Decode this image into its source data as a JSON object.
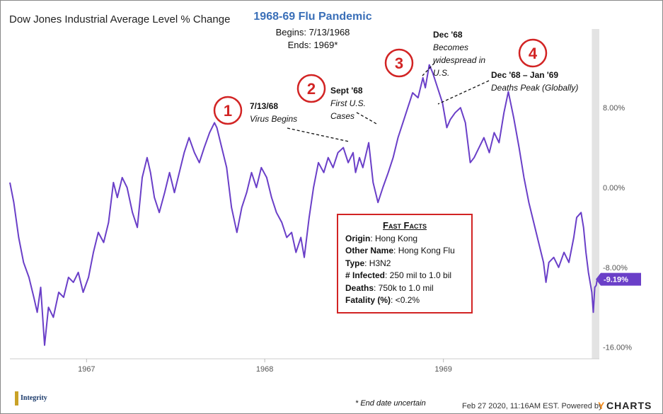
{
  "chart_data": {
    "type": "line",
    "title": "Dow Jones Industrial Average Level % Change",
    "ylim": [
      -17.5,
      15
    ],
    "y_ticks": [
      {
        "value": 8,
        "label": "8.00%"
      },
      {
        "value": 0,
        "label": "0.00%"
      },
      {
        "value": -8,
        "label": "-8.00%"
      },
      {
        "value": -16,
        "label": "-16.00%"
      }
    ],
    "x_range": [
      "1966-07-28",
      "1969-11-12"
    ],
    "x_ticks": [
      {
        "date": "1967-01-01",
        "label": "1967"
      },
      {
        "date": "1968-01-01",
        "label": "1968"
      },
      {
        "date": "1969-01-01",
        "label": "1969"
      }
    ],
    "series": [
      {
        "color": "#6a3fc8",
        "points": [
          [
            "1966-07-28",
            0.5
          ],
          [
            "1966-08-05",
            -1.5
          ],
          [
            "1966-08-15",
            -5.0
          ],
          [
            "1966-08-25",
            -7.5
          ],
          [
            "1966-09-05",
            -9.0
          ],
          [
            "1966-09-15",
            -11.0
          ],
          [
            "1966-09-22",
            -12.5
          ],
          [
            "1966-09-29",
            -10.0
          ],
          [
            "1966-10-07",
            -15.8
          ],
          [
            "1966-10-15",
            -12.0
          ],
          [
            "1966-10-25",
            -13.0
          ],
          [
            "1966-11-05",
            -10.5
          ],
          [
            "1966-11-15",
            -11.0
          ],
          [
            "1966-11-25",
            -9.0
          ],
          [
            "1966-12-05",
            -9.5
          ],
          [
            "1966-12-15",
            -8.5
          ],
          [
            "1966-12-25",
            -10.5
          ],
          [
            "1967-01-05",
            -9.0
          ],
          [
            "1967-01-15",
            -6.5
          ],
          [
            "1967-01-25",
            -4.5
          ],
          [
            "1967-02-05",
            -5.5
          ],
          [
            "1967-02-15",
            -3.5
          ],
          [
            "1967-02-25",
            0.5
          ],
          [
            "1967-03-05",
            -1.0
          ],
          [
            "1967-03-15",
            1.0
          ],
          [
            "1967-03-25",
            0.0
          ],
          [
            "1967-04-05",
            -2.5
          ],
          [
            "1967-04-15",
            -4.0
          ],
          [
            "1967-04-25",
            1.0
          ],
          [
            "1967-05-05",
            3.0
          ],
          [
            "1967-05-12",
            1.5
          ],
          [
            "1967-05-20",
            -1.0
          ],
          [
            "1967-05-30",
            -2.5
          ],
          [
            "1967-06-10",
            -0.5
          ],
          [
            "1967-06-20",
            1.5
          ],
          [
            "1967-06-30",
            -0.5
          ],
          [
            "1967-07-10",
            1.5
          ],
          [
            "1967-07-20",
            3.5
          ],
          [
            "1967-07-30",
            5.0
          ],
          [
            "1967-08-10",
            3.5
          ],
          [
            "1967-08-20",
            2.5
          ],
          [
            "1967-08-30",
            4.0
          ],
          [
            "1967-09-10",
            5.5
          ],
          [
            "1967-09-20",
            6.5
          ],
          [
            "1967-09-25",
            6.0
          ],
          [
            "1967-10-05",
            4.0
          ],
          [
            "1967-10-15",
            2.0
          ],
          [
            "1967-10-25",
            -2.0
          ],
          [
            "1967-11-05",
            -4.5
          ],
          [
            "1967-11-15",
            -2.0
          ],
          [
            "1967-11-25",
            -0.5
          ],
          [
            "1967-12-05",
            1.5
          ],
          [
            "1967-12-15",
            0.0
          ],
          [
            "1967-12-25",
            2.0
          ],
          [
            "1968-01-05",
            1.0
          ],
          [
            "1968-01-15",
            -1.0
          ],
          [
            "1968-01-25",
            -2.5
          ],
          [
            "1968-02-05",
            -3.5
          ],
          [
            "1968-02-15",
            -5.0
          ],
          [
            "1968-02-25",
            -4.5
          ],
          [
            "1968-03-05",
            -6.5
          ],
          [
            "1968-03-15",
            -5.0
          ],
          [
            "1968-03-22",
            -7.0
          ],
          [
            "1968-04-01",
            -3.0
          ],
          [
            "1968-04-10",
            0.0
          ],
          [
            "1968-04-20",
            2.5
          ],
          [
            "1968-05-01",
            1.5
          ],
          [
            "1968-05-10",
            3.0
          ],
          [
            "1968-05-20",
            2.0
          ],
          [
            "1968-05-30",
            3.5
          ],
          [
            "1968-06-10",
            4.0
          ],
          [
            "1968-06-20",
            2.5
          ],
          [
            "1968-06-30",
            3.5
          ],
          [
            "1968-07-05",
            1.5
          ],
          [
            "1968-07-13",
            3.0
          ],
          [
            "1968-07-20",
            2.0
          ],
          [
            "1968-08-01",
            4.5
          ],
          [
            "1968-08-10",
            0.5
          ],
          [
            "1968-08-20",
            -1.5
          ],
          [
            "1968-08-30",
            0.0
          ],
          [
            "1968-09-10",
            1.5
          ],
          [
            "1968-09-20",
            3.0
          ],
          [
            "1968-09-30",
            5.0
          ],
          [
            "1968-10-10",
            6.5
          ],
          [
            "1968-10-20",
            8.0
          ],
          [
            "1968-10-30",
            9.5
          ],
          [
            "1968-11-10",
            9.0
          ],
          [
            "1968-11-20",
            11.0
          ],
          [
            "1968-11-25",
            10.0
          ],
          [
            "1968-12-03",
            12.3
          ],
          [
            "1968-12-10",
            11.5
          ],
          [
            "1968-12-20",
            10.0
          ],
          [
            "1968-12-30",
            8.5
          ],
          [
            "1969-01-08",
            6.0
          ],
          [
            "1969-01-15",
            6.8
          ],
          [
            "1969-01-25",
            7.5
          ],
          [
            "1969-02-05",
            8.0
          ],
          [
            "1969-02-15",
            6.5
          ],
          [
            "1969-02-25",
            2.5
          ],
          [
            "1969-03-05",
            3.0
          ],
          [
            "1969-03-15",
            4.0
          ],
          [
            "1969-03-25",
            5.0
          ],
          [
            "1969-04-05",
            3.5
          ],
          [
            "1969-04-15",
            5.5
          ],
          [
            "1969-04-25",
            4.5
          ],
          [
            "1969-05-05",
            7.5
          ],
          [
            "1969-05-14",
            9.6
          ],
          [
            "1969-05-25",
            7.0
          ],
          [
            "1969-06-05",
            4.0
          ],
          [
            "1969-06-15",
            1.0
          ],
          [
            "1969-06-25",
            -1.5
          ],
          [
            "1969-07-05",
            -3.5
          ],
          [
            "1969-07-15",
            -5.5
          ],
          [
            "1969-07-25",
            -7.5
          ],
          [
            "1969-07-30",
            -9.5
          ],
          [
            "1969-08-05",
            -7.5
          ],
          [
            "1969-08-15",
            -7.0
          ],
          [
            "1969-08-25",
            -8.0
          ],
          [
            "1969-09-05",
            -6.5
          ],
          [
            "1969-09-15",
            -7.5
          ],
          [
            "1969-09-25",
            -5.0
          ],
          [
            "1969-10-01",
            -3.0
          ],
          [
            "1969-10-10",
            -2.5
          ],
          [
            "1969-10-15",
            -4.0
          ],
          [
            "1969-10-20",
            -6.5
          ],
          [
            "1969-10-25",
            -8.5
          ],
          [
            "1969-11-01",
            -10.5
          ],
          [
            "1969-11-04",
            -12.5
          ],
          [
            "1969-11-07",
            -10.0
          ],
          [
            "1969-11-10",
            -9.8
          ],
          [
            "1969-11-12",
            -9.19
          ]
        ]
      }
    ],
    "last_value_label": "-9.19%",
    "shaded_region": [
      "1969-11-01",
      "1969-11-12"
    ],
    "grid": false,
    "legend": "none"
  },
  "header": {
    "event_title": "1968-69 Flu Pandemic",
    "begins": "Begins: 7/13/1968",
    "ends": "Ends: 1969*"
  },
  "annotations": [
    {
      "number": "1",
      "date": "7/13/68",
      "text": "Virus Begins"
    },
    {
      "number": "2",
      "date": "Sept '68",
      "text_lines": [
        "First U.S.",
        "Cases"
      ]
    },
    {
      "number": "3",
      "date": "Dec '68",
      "text_lines": [
        "Becomes",
        "widespread in",
        "U.S."
      ]
    },
    {
      "number": "4",
      "date": "Dec '68 – Jan '69",
      "text": "Deaths Peak (Globally)"
    }
  ],
  "fast_facts": {
    "title": "Fast Facts",
    "rows": [
      {
        "label": "Origin",
        "value": ": Hong Kong"
      },
      {
        "label": "Other Name",
        "value": ": Hong Kong Flu"
      },
      {
        "label": "Type",
        "value": ": H3N2"
      },
      {
        "label": "# Infected",
        "value": ": 250 mil to 1.0 bil"
      },
      {
        "label": "Deaths",
        "value": ": 750k to 1.0 mil"
      },
      {
        "label": "Fatality (%)",
        "value": ": <0.2%"
      }
    ]
  },
  "footer": {
    "footnote": "* End date uncertain",
    "timestamp": "Feb 27 2020, 11:16AM EST. Powered by",
    "brand_y": "Y",
    "brand_rest": "CHARTS",
    "logo_text": "Integrity"
  },
  "colors": {
    "line": "#6a3fc8",
    "callout": "#d22424",
    "title_blue": "#3a6fb8",
    "axis_text": "#555555"
  }
}
